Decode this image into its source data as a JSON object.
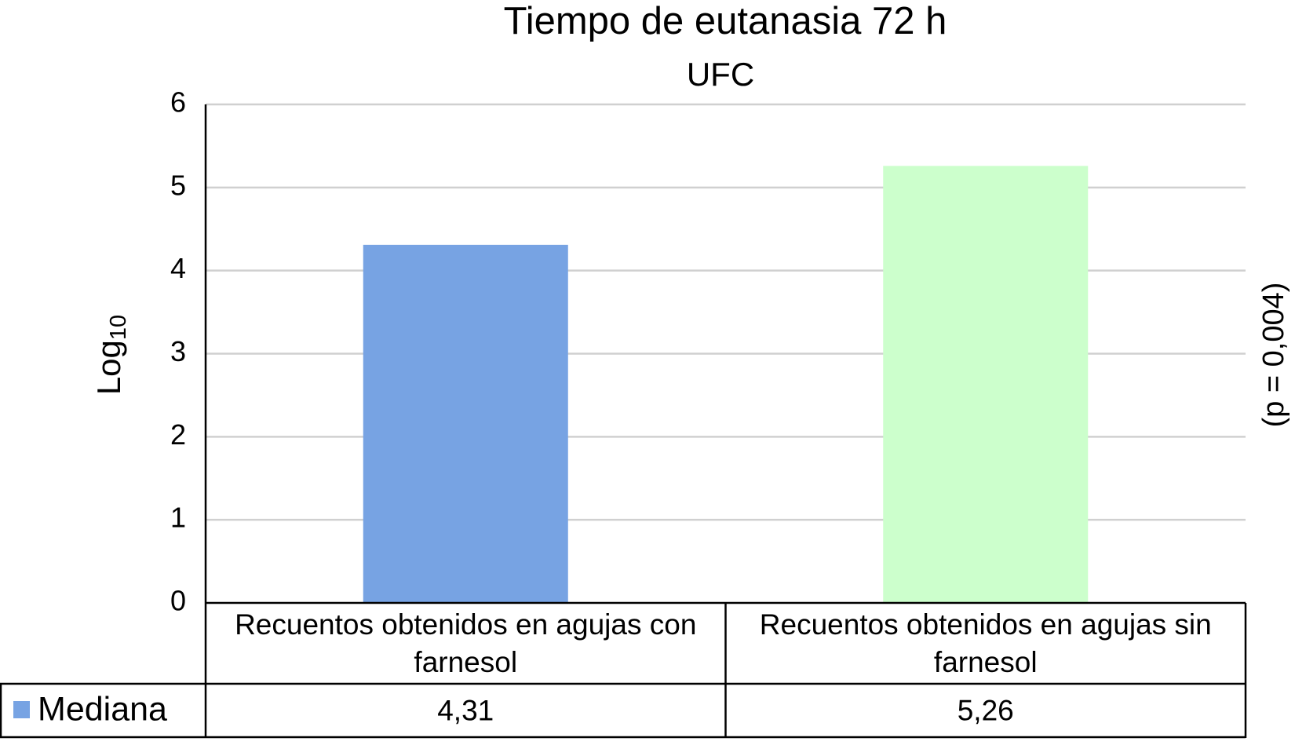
{
  "chart_data": {
    "type": "bar",
    "title": "Tiempo de eutanasia 72 h",
    "subtitle": "UFC",
    "y_label": "Log",
    "y_label_subscript": "10",
    "annotation": "(p = 0,004)",
    "categories": [
      "Recuentos obtenidos en agujas con farnesol",
      "Recuentos obtenidos en agujas sin farnesol"
    ],
    "series": [
      {
        "name": "Mediana",
        "color": "#77a3e3",
        "bar_colors": [
          "#77a3e3",
          "#ccffcc"
        ],
        "values": [
          4.31,
          5.26
        ],
        "value_labels": [
          "4,31",
          "5,26"
        ]
      }
    ],
    "ylim": [
      0,
      6
    ],
    "yticks": [
      0,
      1,
      2,
      3,
      4,
      5,
      6
    ],
    "grid": true
  }
}
